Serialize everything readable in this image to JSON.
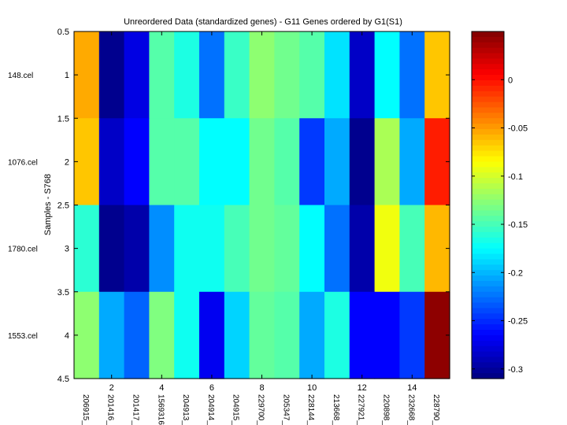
{
  "chart_data": {
    "type": "heatmap",
    "title": "Unreordered Data (standardized genes) - G11 Genes ordered by G1(S1)",
    "xlabel": "",
    "ylabel": "Samples - S768",
    "row_labels": [
      "148.cel",
      "1076.cel",
      "1780.cel",
      "1553.cel"
    ],
    "col_labels": [
      "206915_",
      "201416_",
      "201417_",
      "1569316",
      "204913_",
      "204914_",
      "204915_",
      "229700_",
      "205347_",
      "228144_",
      "213668_",
      "227921_",
      "220898_",
      "232668_",
      "228790_"
    ],
    "x_tick_values": [
      2,
      4,
      6,
      8,
      10,
      12,
      14
    ],
    "y_tick_values": [
      0.5,
      1,
      1.5,
      2,
      2.5,
      3,
      3.5,
      4,
      4.5
    ],
    "xlim": [
      0.5,
      15.5
    ],
    "ylim": [
      0.5,
      4.5
    ],
    "colormap": "jet",
    "clim": [
      -0.31,
      0.05
    ],
    "colorbar_ticks": [
      0,
      -0.05,
      -0.1,
      -0.15,
      -0.2,
      -0.25,
      -0.3
    ],
    "values": [
      [
        -0.055,
        -0.305,
        -0.275,
        -0.145,
        -0.165,
        -0.225,
        -0.155,
        -0.125,
        -0.135,
        -0.145,
        -0.185,
        -0.285,
        -0.175,
        -0.225,
        -0.065
      ],
      [
        -0.065,
        -0.285,
        -0.265,
        -0.145,
        -0.145,
        -0.175,
        -0.175,
        -0.135,
        -0.145,
        -0.245,
        -0.205,
        -0.305,
        -0.115,
        -0.205,
        -0.005
      ],
      [
        -0.16,
        -0.305,
        -0.295,
        -0.215,
        -0.17,
        -0.17,
        -0.15,
        -0.135,
        -0.14,
        -0.175,
        -0.225,
        -0.295,
        -0.09,
        -0.15,
        -0.06
      ],
      [
        -0.125,
        -0.205,
        -0.23,
        -0.13,
        -0.17,
        -0.27,
        -0.19,
        -0.14,
        -0.145,
        -0.205,
        -0.165,
        -0.265,
        -0.265,
        -0.245,
        0.045
      ]
    ]
  }
}
